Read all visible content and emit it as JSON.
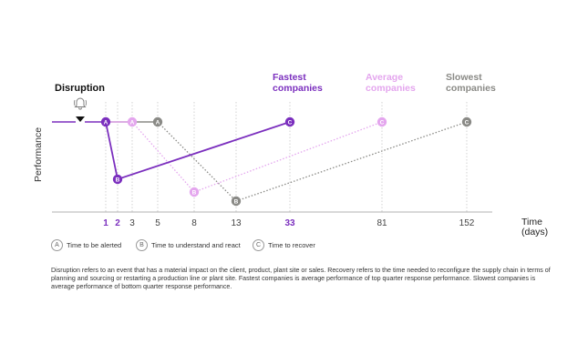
{
  "chart_data": {
    "type": "line",
    "ylabel": "Performance",
    "xlabel": "Time\n(days)",
    "disruption_label": "Disruption",
    "x_ticks": [
      {
        "label": "1",
        "color": "#7b2fbe",
        "bold": true
      },
      {
        "label": "2",
        "color": "#7b2fbe",
        "bold": true
      },
      {
        "label": "3",
        "color": "#444444",
        "bold": false
      },
      {
        "label": "5",
        "color": "#444444",
        "bold": false
      },
      {
        "label": "8",
        "color": "#444444",
        "bold": false
      },
      {
        "label": "13",
        "color": "#444444",
        "bold": false
      },
      {
        "label": "33",
        "color": "#7b2fbe",
        "bold": true
      },
      {
        "label": "81",
        "color": "#444444",
        "bold": false
      },
      {
        "label": "152",
        "color": "#444444",
        "bold": false
      }
    ],
    "series": [
      {
        "name": "Fastest companies",
        "color": "#7b2fbe",
        "style": "solid",
        "points": [
          {
            "x": "1",
            "marker": "A",
            "level": "baseline"
          },
          {
            "x": "2",
            "marker": "B",
            "level": "trough"
          },
          {
            "x": "33",
            "marker": "C",
            "level": "baseline"
          }
        ]
      },
      {
        "name": "Average companies",
        "color": "#e4a6ee",
        "style": "dotted",
        "points": [
          {
            "x": "3",
            "marker": "A",
            "level": "baseline"
          },
          {
            "x": "8",
            "marker": "B",
            "level": "trough"
          },
          {
            "x": "81",
            "marker": "C",
            "level": "baseline"
          }
        ]
      },
      {
        "name": "Slowest companies",
        "color": "#8a8a86",
        "style": "dotted",
        "points": [
          {
            "x": "5",
            "marker": "A",
            "level": "baseline"
          },
          {
            "x": "13",
            "marker": "B",
            "level": "trough"
          },
          {
            "x": "152",
            "marker": "C",
            "level": "baseline"
          }
        ]
      }
    ],
    "grid": "vertical dotted"
  },
  "legend": [
    {
      "badge": "A",
      "label": "Time to be alerted"
    },
    {
      "badge": "B",
      "label": "Time to understand and react"
    },
    {
      "badge": "C",
      "label": "Time to recover"
    }
  ],
  "footnote": "Disruption refers to an event that has a material impact on the client, product, plant site or sales. Recovery refers to the time needed to reconfigure the supply chain in terms of planning and sourcing or restarting a production line or plant site. Fastest companies is average performance of top quarter response performance. Slowest companies is average performance of bottom quarter response performance."
}
